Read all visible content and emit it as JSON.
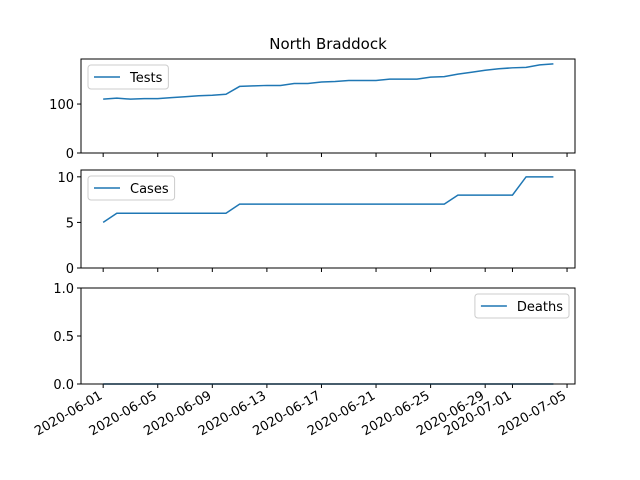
{
  "chart_data": [
    {
      "type": "line",
      "title": "North Braddock",
      "x": [
        "2020-06-01",
        "2020-06-02",
        "2020-06-03",
        "2020-06-04",
        "2020-06-05",
        "2020-06-06",
        "2020-06-07",
        "2020-06-08",
        "2020-06-09",
        "2020-06-10",
        "2020-06-11",
        "2020-06-12",
        "2020-06-13",
        "2020-06-14",
        "2020-06-15",
        "2020-06-16",
        "2020-06-17",
        "2020-06-18",
        "2020-06-19",
        "2020-06-20",
        "2020-06-21",
        "2020-06-22",
        "2020-06-23",
        "2020-06-24",
        "2020-06-25",
        "2020-06-26",
        "2020-06-27",
        "2020-06-28",
        "2020-06-29",
        "2020-06-30",
        "2020-07-01",
        "2020-07-02",
        "2020-07-03",
        "2020-07-04"
      ],
      "series": [
        {
          "name": "Tests",
          "color": "#1f77b4",
          "values": [
            110,
            112,
            110,
            111,
            111,
            113,
            115,
            117,
            118,
            120,
            136,
            137,
            138,
            138,
            142,
            142,
            145,
            146,
            148,
            148,
            148,
            151,
            151,
            151,
            155,
            156,
            161,
            165,
            169,
            172,
            174,
            175,
            180,
            182
          ]
        }
      ],
      "xlim": [
        "2020-05-30T09:00",
        "2020-07-05T14:00"
      ],
      "xticks": [
        "2020-06-01",
        "2020-06-05",
        "2020-06-09",
        "2020-06-13",
        "2020-06-17",
        "2020-06-21",
        "2020-06-25",
        "2020-06-29",
        "2020-07-01",
        "2020-07-05"
      ],
      "ylim": [
        0,
        192
      ],
      "yticks": [
        0,
        100
      ],
      "legend": "upper left"
    },
    {
      "type": "line",
      "x": [
        "2020-06-01",
        "2020-06-02",
        "2020-06-03",
        "2020-06-04",
        "2020-06-05",
        "2020-06-06",
        "2020-06-07",
        "2020-06-08",
        "2020-06-09",
        "2020-06-10",
        "2020-06-11",
        "2020-06-12",
        "2020-06-13",
        "2020-06-14",
        "2020-06-15",
        "2020-06-16",
        "2020-06-17",
        "2020-06-18",
        "2020-06-19",
        "2020-06-20",
        "2020-06-21",
        "2020-06-22",
        "2020-06-23",
        "2020-06-24",
        "2020-06-25",
        "2020-06-26",
        "2020-06-27",
        "2020-06-28",
        "2020-06-29",
        "2020-06-30",
        "2020-07-01",
        "2020-07-02",
        "2020-07-03",
        "2020-07-04"
      ],
      "series": [
        {
          "name": "Cases",
          "color": "#1f77b4",
          "values": [
            5,
            6,
            6,
            6,
            6,
            6,
            6,
            6,
            6,
            6,
            7,
            7,
            7,
            7,
            7,
            7,
            7,
            7,
            7,
            7,
            7,
            7,
            7,
            7,
            7,
            7,
            8,
            8,
            8,
            8,
            8,
            10,
            10,
            10
          ]
        }
      ],
      "xlim": [
        "2020-05-30T09:00",
        "2020-07-05T14:00"
      ],
      "xticks": [
        "2020-06-01",
        "2020-06-05",
        "2020-06-09",
        "2020-06-13",
        "2020-06-17",
        "2020-06-21",
        "2020-06-25",
        "2020-06-29",
        "2020-07-01",
        "2020-07-05"
      ],
      "ylim": [
        0,
        10.75
      ],
      "yticks": [
        0,
        5,
        10
      ],
      "legend": "upper left"
    },
    {
      "type": "line",
      "x": [
        "2020-06-01",
        "2020-06-02",
        "2020-06-03",
        "2020-06-04",
        "2020-06-05",
        "2020-06-06",
        "2020-06-07",
        "2020-06-08",
        "2020-06-09",
        "2020-06-10",
        "2020-06-11",
        "2020-06-12",
        "2020-06-13",
        "2020-06-14",
        "2020-06-15",
        "2020-06-16",
        "2020-06-17",
        "2020-06-18",
        "2020-06-19",
        "2020-06-20",
        "2020-06-21",
        "2020-06-22",
        "2020-06-23",
        "2020-06-24",
        "2020-06-25",
        "2020-06-26",
        "2020-06-27",
        "2020-06-28",
        "2020-06-29",
        "2020-06-30",
        "2020-07-01",
        "2020-07-02",
        "2020-07-03",
        "2020-07-04"
      ],
      "series": [
        {
          "name": "Deaths",
          "color": "#1f77b4",
          "values": [
            0,
            0,
            0,
            0,
            0,
            0,
            0,
            0,
            0,
            0,
            0,
            0,
            0,
            0,
            0,
            0,
            0,
            0,
            0,
            0,
            0,
            0,
            0,
            0,
            0,
            0,
            0,
            0,
            0,
            0,
            0,
            0,
            0,
            0
          ]
        }
      ],
      "xlim": [
        "2020-05-30T09:00",
        "2020-07-05T14:00"
      ],
      "xticks": [
        "2020-06-01",
        "2020-06-05",
        "2020-06-09",
        "2020-06-13",
        "2020-06-17",
        "2020-06-21",
        "2020-06-25",
        "2020-06-29",
        "2020-07-01",
        "2020-07-05"
      ],
      "xtick_labels": true,
      "ylim": [
        0,
        1
      ],
      "yticks": [
        {
          "value": 0,
          "label": "0.0"
        },
        0.5,
        {
          "value": 1,
          "label": "1.0"
        }
      ],
      "legend": "upper right"
    }
  ]
}
